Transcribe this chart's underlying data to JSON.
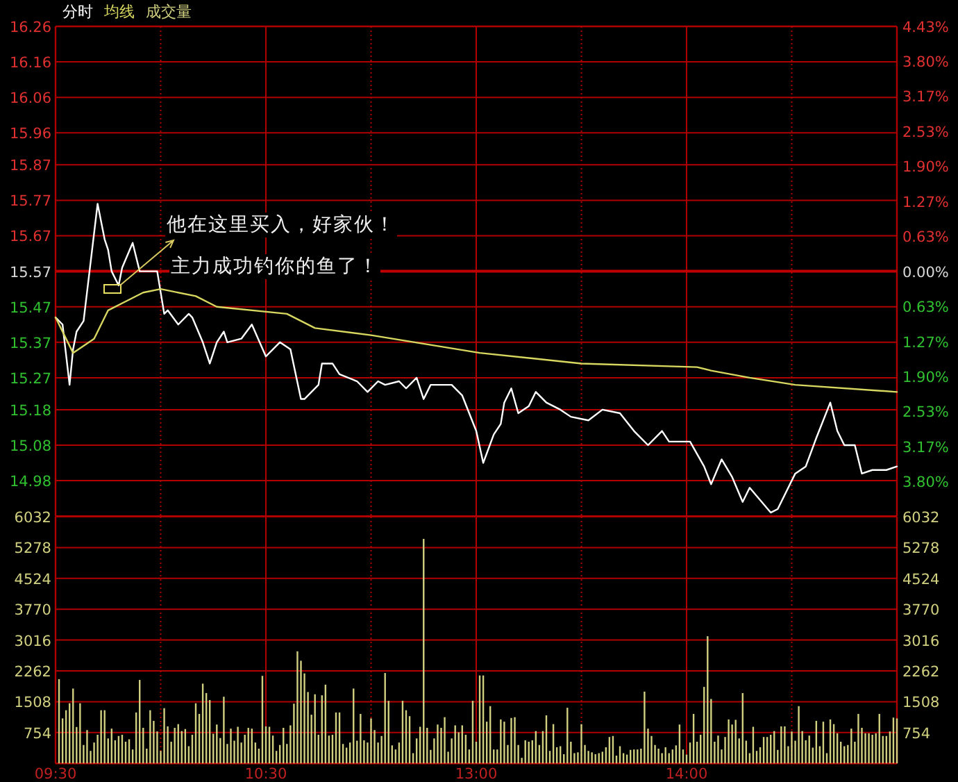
{
  "chart_data": [
    {
      "type": "line",
      "legend": "top left",
      "tick_labels": "y",
      "grid": true,
      "categories": [
        null,
        null,
        null,
        null,
        null,
        null,
        null,
        null,
        null,
        null,
        null,
        null,
        null,
        null,
        null,
        null,
        null,
        null,
        null,
        null,
        null,
        null,
        null,
        null,
        null,
        null,
        null,
        null,
        null,
        null,
        null,
        null,
        null,
        null,
        null,
        null,
        null,
        null,
        null,
        null,
        null,
        null,
        null,
        null,
        null,
        null,
        null,
        null,
        null,
        null,
        null,
        null,
        null,
        null,
        null,
        null,
        null,
        null,
        null,
        null,
        null,
        null,
        null,
        null,
        null,
        null,
        null,
        null,
        null,
        null,
        null,
        null,
        null,
        null,
        null,
        null,
        null,
        null,
        null,
        null,
        null,
        null,
        null,
        null,
        null,
        null,
        null,
        null,
        null,
        null,
        null,
        null,
        null,
        null,
        null,
        null,
        null,
        null,
        null,
        null,
        null,
        null,
        null,
        null,
        null,
        null,
        null,
        null,
        null,
        null,
        null,
        null,
        null,
        null,
        null,
        null,
        null,
        null,
        null,
        null,
        null,
        null,
        null,
        null,
        null,
        null,
        null,
        null,
        null,
        null,
        null,
        null,
        null,
        null,
        null,
        null,
        null,
        null,
        null,
        null,
        null,
        null,
        null,
        null,
        null,
        null,
        null,
        null,
        null,
        null,
        null,
        null,
        null,
        null,
        null,
        null,
        null,
        null,
        null,
        null,
        null,
        null,
        null,
        null,
        null,
        null,
        null,
        null,
        null,
        null,
        null,
        null,
        null,
        null,
        null,
        null,
        null,
        null,
        null,
        null,
        null,
        null,
        null,
        null,
        null,
        null,
        null,
        null,
        null,
        null,
        null,
        null,
        null,
        null,
        null,
        null,
        null,
        null,
        null,
        null,
        null,
        null,
        null,
        null,
        null,
        null,
        null,
        null,
        null,
        null,
        null,
        null,
        null,
        null,
        null,
        null,
        null,
        null,
        null,
        null,
        null,
        null,
        null,
        null,
        null,
        null,
        null,
        null,
        null,
        null,
        null,
        null,
        null,
        null,
        null,
        null,
        null,
        null,
        null,
        null,
        null
      ],
      "series": [
        {
          "name": "分时",
          "color": "#ffffff",
          "values": [
            15.44,
            null,
            15.42,
            null,
            15.25,
            15.35,
            15.4,
            null,
            15.43,
            null,
            null,
            null,
            15.76,
            null,
            15.66,
            15.63,
            15.57,
            null,
            15.53,
            15.58,
            null,
            null,
            15.65,
            null,
            15.57,
            null,
            null,
            null,
            null,
            15.57,
            null,
            15.45,
            15.46,
            null,
            null,
            15.42,
            null,
            null,
            15.45,
            15.44,
            null,
            null,
            15.37,
            null,
            15.31,
            null,
            15.37,
            null,
            15.4,
            15.37,
            null,
            null,
            null,
            15.38,
            null,
            null,
            15.42,
            null,
            null,
            null,
            15.33,
            null,
            null,
            null,
            15.37,
            null,
            null,
            15.35,
            null,
            null,
            15.21,
            15.21,
            null,
            null,
            null,
            15.25,
            15.31,
            null,
            null,
            15.31,
            null,
            15.28,
            null,
            null,
            null,
            null,
            15.26,
            null,
            null,
            15.23,
            null,
            null,
            15.26,
            null,
            15.25,
            null,
            null,
            null,
            15.26,
            null,
            15.24,
            null,
            null,
            15.27,
            null,
            15.21,
            null,
            15.25,
            null,
            null,
            null,
            null,
            null,
            15.25,
            null,
            null,
            15.22,
            null,
            15.17,
            null,
            15.12,
            null,
            15.03,
            null,
            null,
            15.11,
            null,
            15.14,
            15.2,
            null,
            15.24,
            null,
            15.17,
            null,
            null,
            15.19,
            null,
            15.23,
            null,
            null,
            15.2,
            null,
            null,
            null,
            15.18,
            null,
            null,
            15.16,
            null,
            null,
            null,
            null,
            15.15,
            null,
            null,
            null,
            15.18,
            null,
            null,
            null,
            null,
            15.17,
            null,
            null,
            null,
            15.12,
            null,
            null,
            null,
            15.08,
            null,
            null,
            null,
            15.12,
            null,
            15.09,
            null,
            null,
            null,
            null,
            null,
            15.09,
            null,
            null,
            null,
            15.02,
            null,
            14.97,
            null,
            null,
            15.04,
            null,
            null,
            14.99,
            null,
            null,
            14.92,
            null,
            14.96,
            null,
            null,
            null,
            null,
            null,
            14.89,
            null,
            14.9,
            null,
            null,
            null,
            null,
            15.0,
            null,
            null,
            15.02,
            null,
            null,
            15.1,
            null,
            null,
            null,
            15.2,
            null,
            15.12,
            null,
            15.08,
            null,
            null,
            15.08,
            null,
            15.0,
            null,
            null,
            15.01,
            null,
            null,
            null,
            15.01,
            null,
            null,
            15.02
          ]
        },
        {
          "name": "均线",
          "color": "#d8d860",
          "values": [
            15.44,
            null,
            null,
            null,
            null,
            15.34,
            null,
            null,
            null,
            null,
            null,
            15.38,
            null,
            null,
            null,
            15.46,
            null,
            null,
            null,
            null,
            null,
            15.49,
            null,
            null,
            null,
            15.51,
            null,
            null,
            null,
            null,
            15.52,
            null,
            null,
            null,
            null,
            null,
            null,
            null,
            null,
            null,
            15.5,
            null,
            null,
            null,
            null,
            null,
            15.47,
            null,
            null,
            null,
            null,
            null,
            null,
            null,
            null,
            null,
            null,
            null,
            null,
            null,
            null,
            null,
            null,
            null,
            null,
            null,
            15.45,
            null,
            null,
            null,
            null,
            null,
            null,
            null,
            15.41,
            null,
            null,
            null,
            null,
            null,
            null,
            null,
            null,
            null,
            null,
            null,
            null,
            null,
            null,
            null,
            15.39,
            null,
            null,
            null,
            null,
            null,
            null,
            null,
            null,
            null,
            null,
            null,
            null,
            null,
            null,
            null,
            null,
            null,
            null,
            null,
            null,
            null,
            null,
            null,
            null,
            null,
            null,
            null,
            null,
            null,
            null,
            15.34,
            null,
            null,
            null,
            null,
            null,
            null,
            null,
            null,
            null,
            null,
            null,
            null,
            null,
            null,
            null,
            null,
            null,
            null,
            null,
            null,
            null,
            null,
            null,
            null,
            null,
            null,
            null,
            null,
            15.31,
            null,
            null,
            null,
            null,
            null,
            null,
            null,
            null,
            null,
            null,
            null,
            null,
            null,
            null,
            null,
            null,
            null,
            null,
            null,
            null,
            null,
            null,
            null,
            null,
            null,
            null,
            null,
            null,
            null,
            null,
            null,
            null,
            15.3,
            null,
            null,
            null,
            15.29,
            null,
            null,
            null,
            null,
            null,
            null,
            null,
            null,
            null,
            null,
            15.27,
            null,
            null,
            null,
            null,
            null,
            null,
            null,
            null,
            null,
            null,
            null,
            null,
            15.25,
            null,
            null,
            null,
            null,
            null,
            null,
            null,
            null,
            null,
            null,
            null,
            null,
            null,
            null,
            null,
            null,
            null,
            null,
            null,
            null,
            null,
            null,
            null,
            null,
            null,
            null,
            null,
            null,
            15.23
          ]
        }
      ],
      "ylim": [
        14.88,
        16.26
      ],
      "yticks": [
        16.26,
        16.16,
        16.06,
        15.96,
        15.87,
        15.77,
        15.67,
        15.57,
        15.47,
        15.37,
        15.27,
        15.18,
        15.08,
        14.98
      ],
      "y2lim": [
        -4.43,
        4.43
      ],
      "y2ticks": [
        {
          "value": 4.43,
          "label": "4.43%"
        },
        {
          "value": 3.8,
          "label": "3.80%"
        },
        {
          "value": 3.17,
          "label": "3.17%"
        },
        {
          "value": 2.53,
          "label": "2.53%"
        },
        {
          "value": 1.9,
          "label": "1.90%"
        },
        {
          "value": 1.27,
          "label": "1.27%"
        },
        {
          "value": 0.63,
          "label": "0.63%"
        },
        {
          "value": 0,
          "label": "0.00%"
        },
        {
          "value": -0.63,
          "label": "0.63%"
        },
        {
          "value": -1.27,
          "label": "1.27%"
        },
        {
          "value": -1.9,
          "label": "1.90%"
        },
        {
          "value": -2.53,
          "label": "2.53%"
        },
        {
          "value": -3.17,
          "label": "3.17%"
        },
        {
          "value": -3.8,
          "label": "3.80%"
        }
      ],
      "ref_lines": [
        {
          "axis": "y",
          "value": 15.57,
          "color": "#c00000"
        }
      ],
      "annotations": [
        "他在这里买入，好家伙！",
        "主力成功钓你的鱼了！"
      ]
    },
    {
      "type": "bar",
      "legend": "top left",
      "grid": true,
      "categories": [
        "09:30",
        null,
        null,
        null,
        null,
        null,
        null,
        null,
        null,
        null,
        null,
        null,
        null,
        null,
        null,
        null,
        null,
        null,
        null,
        null,
        null,
        null,
        null,
        null,
        null,
        null,
        null,
        null,
        null,
        null,
        null,
        null,
        null,
        null,
        null,
        null,
        null,
        null,
        null,
        null,
        null,
        null,
        null,
        null,
        null,
        null,
        null,
        null,
        null,
        null,
        null,
        null,
        null,
        null,
        null,
        null,
        null,
        null,
        null,
        null,
        "10:30",
        null,
        null,
        null,
        null,
        null,
        null,
        null,
        null,
        null,
        null,
        null,
        null,
        null,
        null,
        null,
        null,
        null,
        null,
        null,
        null,
        null,
        null,
        null,
        null,
        null,
        null,
        null,
        null,
        null,
        null,
        null,
        null,
        null,
        null,
        null,
        null,
        null,
        null,
        null,
        null,
        null,
        null,
        null,
        null,
        null,
        null,
        null,
        null,
        null,
        null,
        null,
        null,
        null,
        null,
        null,
        null,
        null,
        null,
        null,
        "13:00",
        null,
        null,
        null,
        null,
        null,
        null,
        null,
        null,
        null,
        null,
        null,
        null,
        null,
        null,
        null,
        null,
        null,
        null,
        null,
        null,
        null,
        null,
        null,
        null,
        null,
        null,
        null,
        null,
        null,
        null,
        null,
        null,
        null,
        null,
        null,
        null,
        null,
        null,
        null,
        null,
        null,
        null,
        null,
        null,
        null,
        null,
        null,
        null,
        null,
        null,
        null,
        null,
        null,
        null,
        null,
        null,
        null,
        null,
        null,
        "14:00",
        null,
        null,
        null,
        null,
        null,
        null,
        null,
        null,
        null,
        null,
        null,
        null,
        null,
        null,
        null,
        null,
        null,
        null,
        null,
        null,
        null,
        null,
        null,
        null,
        null,
        null,
        null,
        null,
        null,
        null,
        null,
        null,
        null,
        null,
        null,
        null,
        null,
        null,
        null,
        null,
        null,
        null,
        null,
        null,
        null,
        null,
        null,
        null,
        null,
        null,
        null,
        null,
        null,
        null,
        null,
        null,
        null,
        null,
        null,
        null
      ],
      "series": [
        {
          "name": "成交量",
          "color": "#d0d080",
          "values": [
            null,
            2060,
            1100,
            1300,
            1470,
            1830,
            890,
            1470,
            450,
            815,
            305,
            510,
            700,
            1300,
            1300,
            610,
            850,
            565,
            670,
            700,
            530,
            590,
            340,
            1245,
            2040,
            870,
            360,
            1300,
            1040,
            780,
            305,
            1350,
            905,
            530,
            870,
            960,
            790,
            840,
            420,
            700,
            1470,
            1210,
            1950,
            1720,
            1550,
            725,
            950,
            620,
            1630,
            475,
            850,
            555,
            895,
            510,
            700,
            870,
            850,
            510,
            360,
            2140,
            905,
            895,
            680,
            305,
            450,
            870,
            475,
            930,
            1460,
            2740,
            2510,
            2200,
            1745,
            1190,
            1690,
            700,
            1665,
            1925,
            680,
            700,
            1245,
            1245,
            475,
            385,
            510,
            1830,
            555,
            1210,
            565,
            510,
            1100,
            815,
            510,
            670,
            2210,
            1530,
            440,
            340,
            510,
            1530,
            1300,
            1155,
            250,
            610,
            895,
            5490,
            870,
            330,
            610,
            950,
            870,
            1130,
            285,
            610,
            930,
            760,
            930,
            700,
            340,
            1530,
            530,
            2150,
            2150,
            1020,
            1400,
            340,
            340,
            1075,
            1020,
            450,
            1110,
            1130,
            450,
            135,
            565,
            530,
            565,
            790,
            450,
            790,
            1175,
            305,
            960,
            395,
            420,
            225,
            1360,
            530,
            250,
            270,
            960,
            450,
            305,
            270,
            225,
            250,
            285,
            395,
            645,
            670,
            190,
            420,
            250,
            215,
            330,
            340,
            340,
            360,
            1755,
            850,
            670,
            450,
            360,
            250,
            395,
            250,
            340,
            440,
            950,
            340,
            215,
            510,
            1210,
            530,
            700,
            1870,
            3110,
            1575,
            530,
            680,
            340,
            645,
            1075,
            950,
            1065,
            610,
            1720,
            555,
            250,
            895,
            305,
            395,
            645,
            645,
            700,
            790,
            330,
            905,
            905,
            420,
            780,
            555,
            1400,
            790,
            565,
            680,
            385,
            1040,
            420,
            1020,
            250,
            1075,
            960,
            735,
            530,
            420,
            450,
            850,
            530,
            1210,
            870,
            735,
            735,
            700,
            735,
            1210,
            670,
            670,
            780,
            1120,
            1100
          ]
        }
      ],
      "ylim": [
        0,
        6032
      ],
      "yticks": [
        754,
        1508,
        2262,
        3016,
        3770,
        4524,
        5278,
        6032
      ],
      "y2lim": [
        0,
        6032
      ],
      "y2ticks": [
        754,
        1508,
        2262,
        3016,
        3770,
        4524,
        5278,
        6032
      ]
    }
  ]
}
